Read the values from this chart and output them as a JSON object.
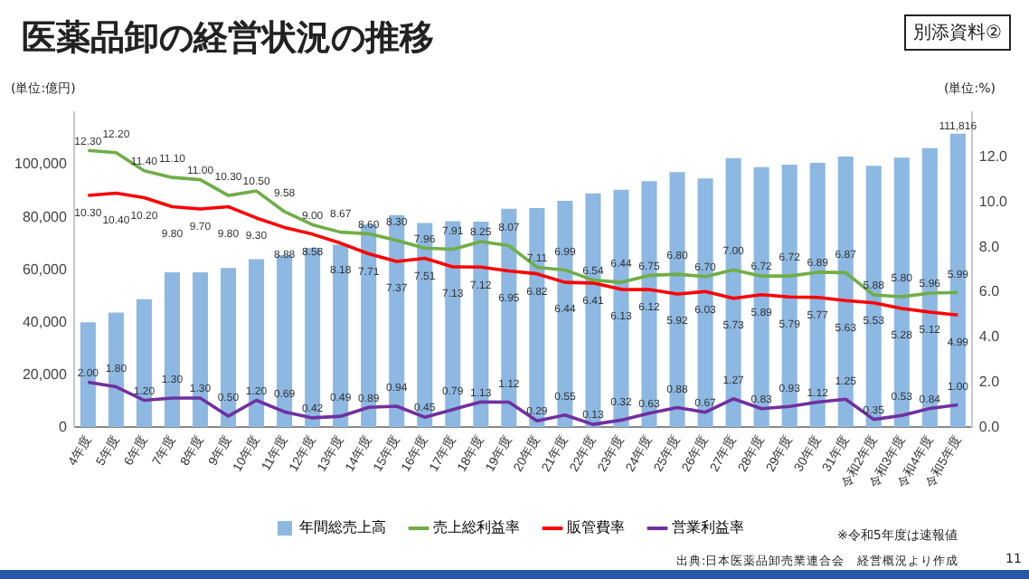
{
  "chart_data": {
    "type": "bar",
    "title": "医薬品卸の経営状況の推移",
    "ylabel": "(単位:億円)",
    "y2label": "(単位:%)",
    "categories": [
      "4年度",
      "5年度",
      "6年度",
      "7年度",
      "8年度",
      "9年度",
      "10年度",
      "11年度",
      "12年度",
      "13年度",
      "14年度",
      "15年度",
      "16年度",
      "17年度",
      "18年度",
      "19年度",
      "20年度",
      "21年度",
      "22年度",
      "23年度",
      "24年度",
      "25年度",
      "26年度",
      "27年度",
      "28年度",
      "29年度",
      "30年度",
      "31年度",
      "令和2年度",
      "令和3年度",
      "令和4年度",
      "令和5年度"
    ],
    "series": [
      {
        "name": "年間総売上高",
        "color": "#8db8e2",
        "values": [
          40000,
          43700,
          48800,
          59000,
          59000,
          60700,
          64000,
          65600,
          68300,
          69500,
          77300,
          80800,
          77800,
          78500,
          78300,
          83200,
          83500,
          86200,
          89100,
          90500,
          93700,
          97200,
          94800,
          102500,
          99100,
          100000,
          100700,
          103100,
          99600,
          102700,
          106300,
          111816
        ],
        "value_labels": [
          null,
          null,
          null,
          null,
          null,
          null,
          null,
          null,
          null,
          null,
          null,
          null,
          null,
          null,
          null,
          null,
          null,
          null,
          null,
          null,
          null,
          null,
          null,
          null,
          null,
          null,
          null,
          null,
          null,
          null,
          null,
          "111,816"
        ]
      },
      {
        "name": "売上総利益率",
        "type": "line",
        "axis": "y2",
        "color": "#70ad47",
        "values": [
          12.3,
          12.2,
          11.4,
          11.1,
          11.0,
          10.3,
          10.5,
          9.58,
          9.0,
          8.67,
          8.6,
          8.3,
          7.96,
          7.91,
          8.25,
          8.07,
          7.11,
          6.99,
          6.54,
          6.44,
          6.75,
          6.8,
          6.7,
          7.0,
          6.72,
          6.72,
          6.89,
          6.87,
          5.88,
          5.8,
          5.96,
          5.99
        ],
        "value_labels": [
          "12.30",
          "12.20",
          "11.40",
          "11.10",
          "11.00",
          "10.30",
          "10.50",
          "9.58",
          "9.00",
          "8.67",
          "8.60",
          "8.30",
          "7.96",
          "7.91",
          "8.25",
          "8.07",
          "7.11",
          "6.99",
          "6.54",
          "6.44",
          "6.75",
          "6.80",
          "6.70",
          "7.00",
          "6.72",
          "6.72",
          "6.89",
          "6.87",
          "5.88",
          "5.80",
          "5.96",
          "5.99"
        ]
      },
      {
        "name": "販管費率",
        "type": "line",
        "axis": "y2",
        "color": "#ff0000",
        "values": [
          10.3,
          10.4,
          10.2,
          9.8,
          9.7,
          9.8,
          9.3,
          8.88,
          8.58,
          8.18,
          7.71,
          7.37,
          7.51,
          7.13,
          7.12,
          6.95,
          6.82,
          6.44,
          6.41,
          6.13,
          6.12,
          5.92,
          6.03,
          5.73,
          5.89,
          5.79,
          5.77,
          5.63,
          5.53,
          5.28,
          5.12,
          4.99
        ],
        "value_labels": [
          "10.30",
          "10.40",
          "10.20",
          "9.80",
          "9.70",
          "9.80",
          "9.30",
          "8.88",
          "8.58",
          "8.18",
          "7.71",
          "7.37",
          "7.51",
          "7.13",
          "7.12",
          "6.95",
          "6.82",
          "6.44",
          "6.41",
          "6.13",
          "6.12",
          "5.92",
          "6.03",
          "5.73",
          "5.89",
          "5.79",
          "5.77",
          "5.63",
          "5.53",
          "5.28",
          "5.12",
          "4.99"
        ]
      },
      {
        "name": "営業利益率",
        "type": "line",
        "axis": "y2",
        "color": "#7030a0",
        "values": [
          2.0,
          1.8,
          1.2,
          1.3,
          1.3,
          0.5,
          1.2,
          0.69,
          0.42,
          0.49,
          0.89,
          0.94,
          0.45,
          0.79,
          1.13,
          1.12,
          0.29,
          0.55,
          0.13,
          0.32,
          0.63,
          0.88,
          0.67,
          1.27,
          0.83,
          0.93,
          1.12,
          1.25,
          0.35,
          0.53,
          0.84,
          1.0
        ],
        "value_labels": [
          "2.00",
          "1.80",
          "1.20",
          "1.30",
          "1.30",
          "0.50",
          "1.20",
          "0.69",
          "0.42",
          "0.49",
          "0.89",
          "0.94",
          "0.45",
          "0.79",
          "1.13",
          "1.12",
          "0.29",
          "0.55",
          "0.13",
          "0.32",
          "0.63",
          "0.88",
          "0.67",
          "1.27",
          "0.83",
          "0.93",
          "1.12",
          "1.25",
          "0.35",
          "0.53",
          "0.84",
          "1.00"
        ]
      }
    ],
    "ylim": [
      0,
      120000
    ],
    "yticks": [
      0,
      {
        "value": 20000,
        "label": "20,000"
      },
      {
        "value": 40000,
        "label": "40,000"
      },
      {
        "value": 60000,
        "label": "60,000"
      },
      {
        "value": 80000,
        "label": "80,000"
      },
      {
        "value": 100000,
        "label": "100,000"
      }
    ],
    "y2lim": [
      0,
      14
    ],
    "y2ticks": [
      {
        "value": 0,
        "label": "0.0"
      },
      {
        "value": 2,
        "label": "2.0"
      },
      {
        "value": 4,
        "label": "4.0"
      },
      {
        "value": 6,
        "label": "6.0"
      },
      {
        "value": 8,
        "label": "8.0"
      },
      {
        "value": 10,
        "label": "10.0"
      },
      {
        "value": 12,
        "label": "12.0"
      }
    ],
    "grid": false,
    "legend": "bottom",
    "marker": "none",
    "line_style": "solid",
    "annotations": [
      "別添資料②",
      "※令和5年度は速報値",
      "出典:日本医薬品卸売業連合会　経営概況より作成",
      "11"
    ]
  }
}
